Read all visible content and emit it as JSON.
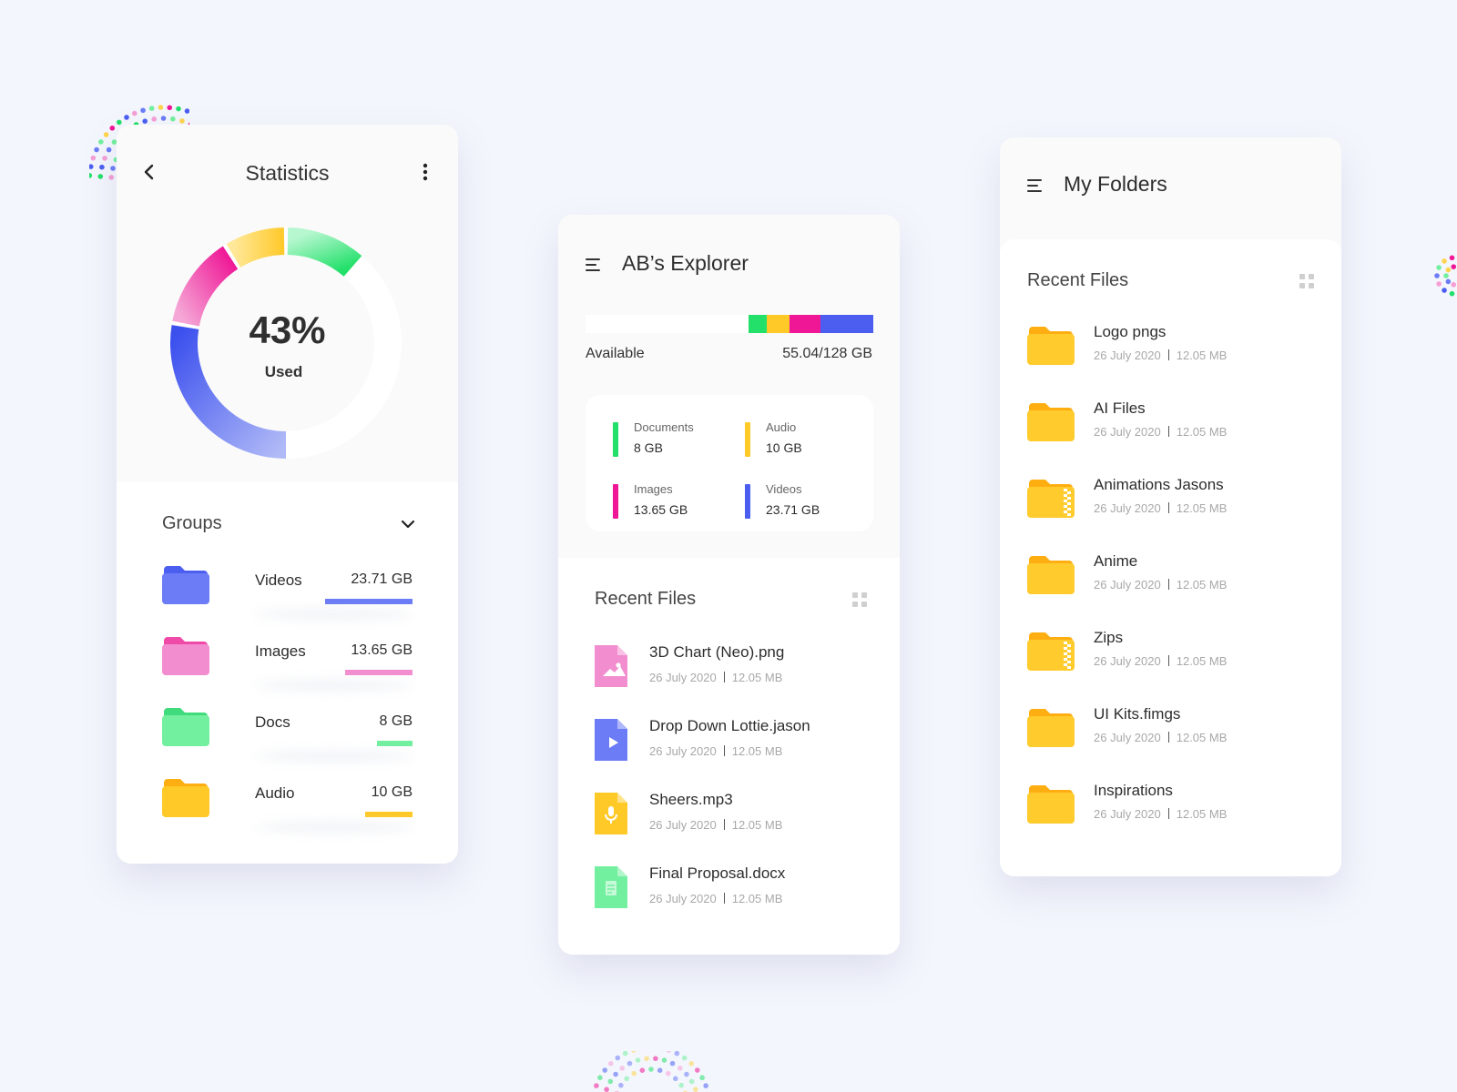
{
  "colors": {
    "blue": "#5c6cf5",
    "pink": "#f07ec8",
    "green": "#5ff09b",
    "yellow": "#ffc928",
    "folder_yellow": "#ffcb2d",
    "background": "#f4f6fd"
  },
  "statistics": {
    "title": "Statistics",
    "back_icon": "chevron-left-icon",
    "more_icon": "more-vertical-icon",
    "usage_percent": "43%",
    "usage_label": "Used",
    "usage_fraction": 0.43,
    "groups_title": "Groups",
    "groups": [
      {
        "name": "Videos",
        "size": "23.71 GB",
        "color": "#6b7cf6",
        "fill": 0.35
      },
      {
        "name": "Images",
        "size": "13.65 GB",
        "color": "#f28ecf",
        "fill": 0.27
      },
      {
        "name": "Docs",
        "size": "8 GB",
        "color": "#72ef9f",
        "fill": 0.14
      },
      {
        "name": "Audio",
        "size": "10 GB",
        "color": "#ffc928",
        "fill": 0.19
      }
    ]
  },
  "explorer": {
    "title": "AB’s Explorer",
    "menu_icon": "menu-icon",
    "available_label": "Available",
    "storage_value": "55.04/128 GB",
    "storage_segments": [
      {
        "label": "Documents",
        "fraction": 0.0625,
        "color": "#22e06a"
      },
      {
        "label": "Audio",
        "fraction": 0.078,
        "color": "#ffc928"
      },
      {
        "label": "Images",
        "fraction": 0.107,
        "color": "#ef1796"
      },
      {
        "label": "Videos",
        "fraction": 0.185,
        "color": "#4b5ef0"
      }
    ],
    "legend": [
      {
        "name": "Documents",
        "size": "8 GB",
        "color": "#22e06a"
      },
      {
        "name": "Audio",
        "size": "10 GB",
        "color": "#ffc928"
      },
      {
        "name": "Images",
        "size": "13.65 GB",
        "color": "#ef1796"
      },
      {
        "name": "Videos",
        "size": "23.71 GB",
        "color": "#4b5ef0"
      }
    ],
    "recent_title": "Recent Files",
    "recent_files": [
      {
        "name": "3D Chart (Neo).png",
        "date": "26 July 2020",
        "size": "12.05 MB",
        "icon": "image-file-icon",
        "color": "#f28ecf"
      },
      {
        "name": "Drop Down Lottie.jason",
        "date": "26 July 2020",
        "size": "12.05 MB",
        "icon": "video-file-icon",
        "color": "#6b7cf6"
      },
      {
        "name": "Sheers.mp3",
        "date": "26 July 2020",
        "size": "12.05 MB",
        "icon": "audio-file-icon",
        "color": "#ffc928"
      },
      {
        "name": "Final Proposal.docx",
        "date": "26 July 2020",
        "size": "12.05 MB",
        "icon": "doc-file-icon",
        "color": "#72ef9f"
      }
    ]
  },
  "folders": {
    "title": "My Folders",
    "recent_title": "Recent Files",
    "items": [
      {
        "name": "Logo pngs",
        "date": "26 July 2020",
        "size": "12.05 MB",
        "zip": false
      },
      {
        "name": "AI Files",
        "date": "26 July 2020",
        "size": "12.05 MB",
        "zip": false
      },
      {
        "name": "Animations Jasons",
        "date": "26 July 2020",
        "size": "12.05 MB",
        "zip": true
      },
      {
        "name": "Anime",
        "date": "26 July 2020",
        "size": "12.05 MB",
        "zip": false
      },
      {
        "name": "Zips",
        "date": "26 July 2020",
        "size": "12.05 MB",
        "zip": true
      },
      {
        "name": "UI Kits.fimgs",
        "date": "26 July 2020",
        "size": "12.05 MB",
        "zip": false
      },
      {
        "name": "Inspirations",
        "date": "26 July 2020",
        "size": "12.05 MB",
        "zip": false
      }
    ]
  }
}
